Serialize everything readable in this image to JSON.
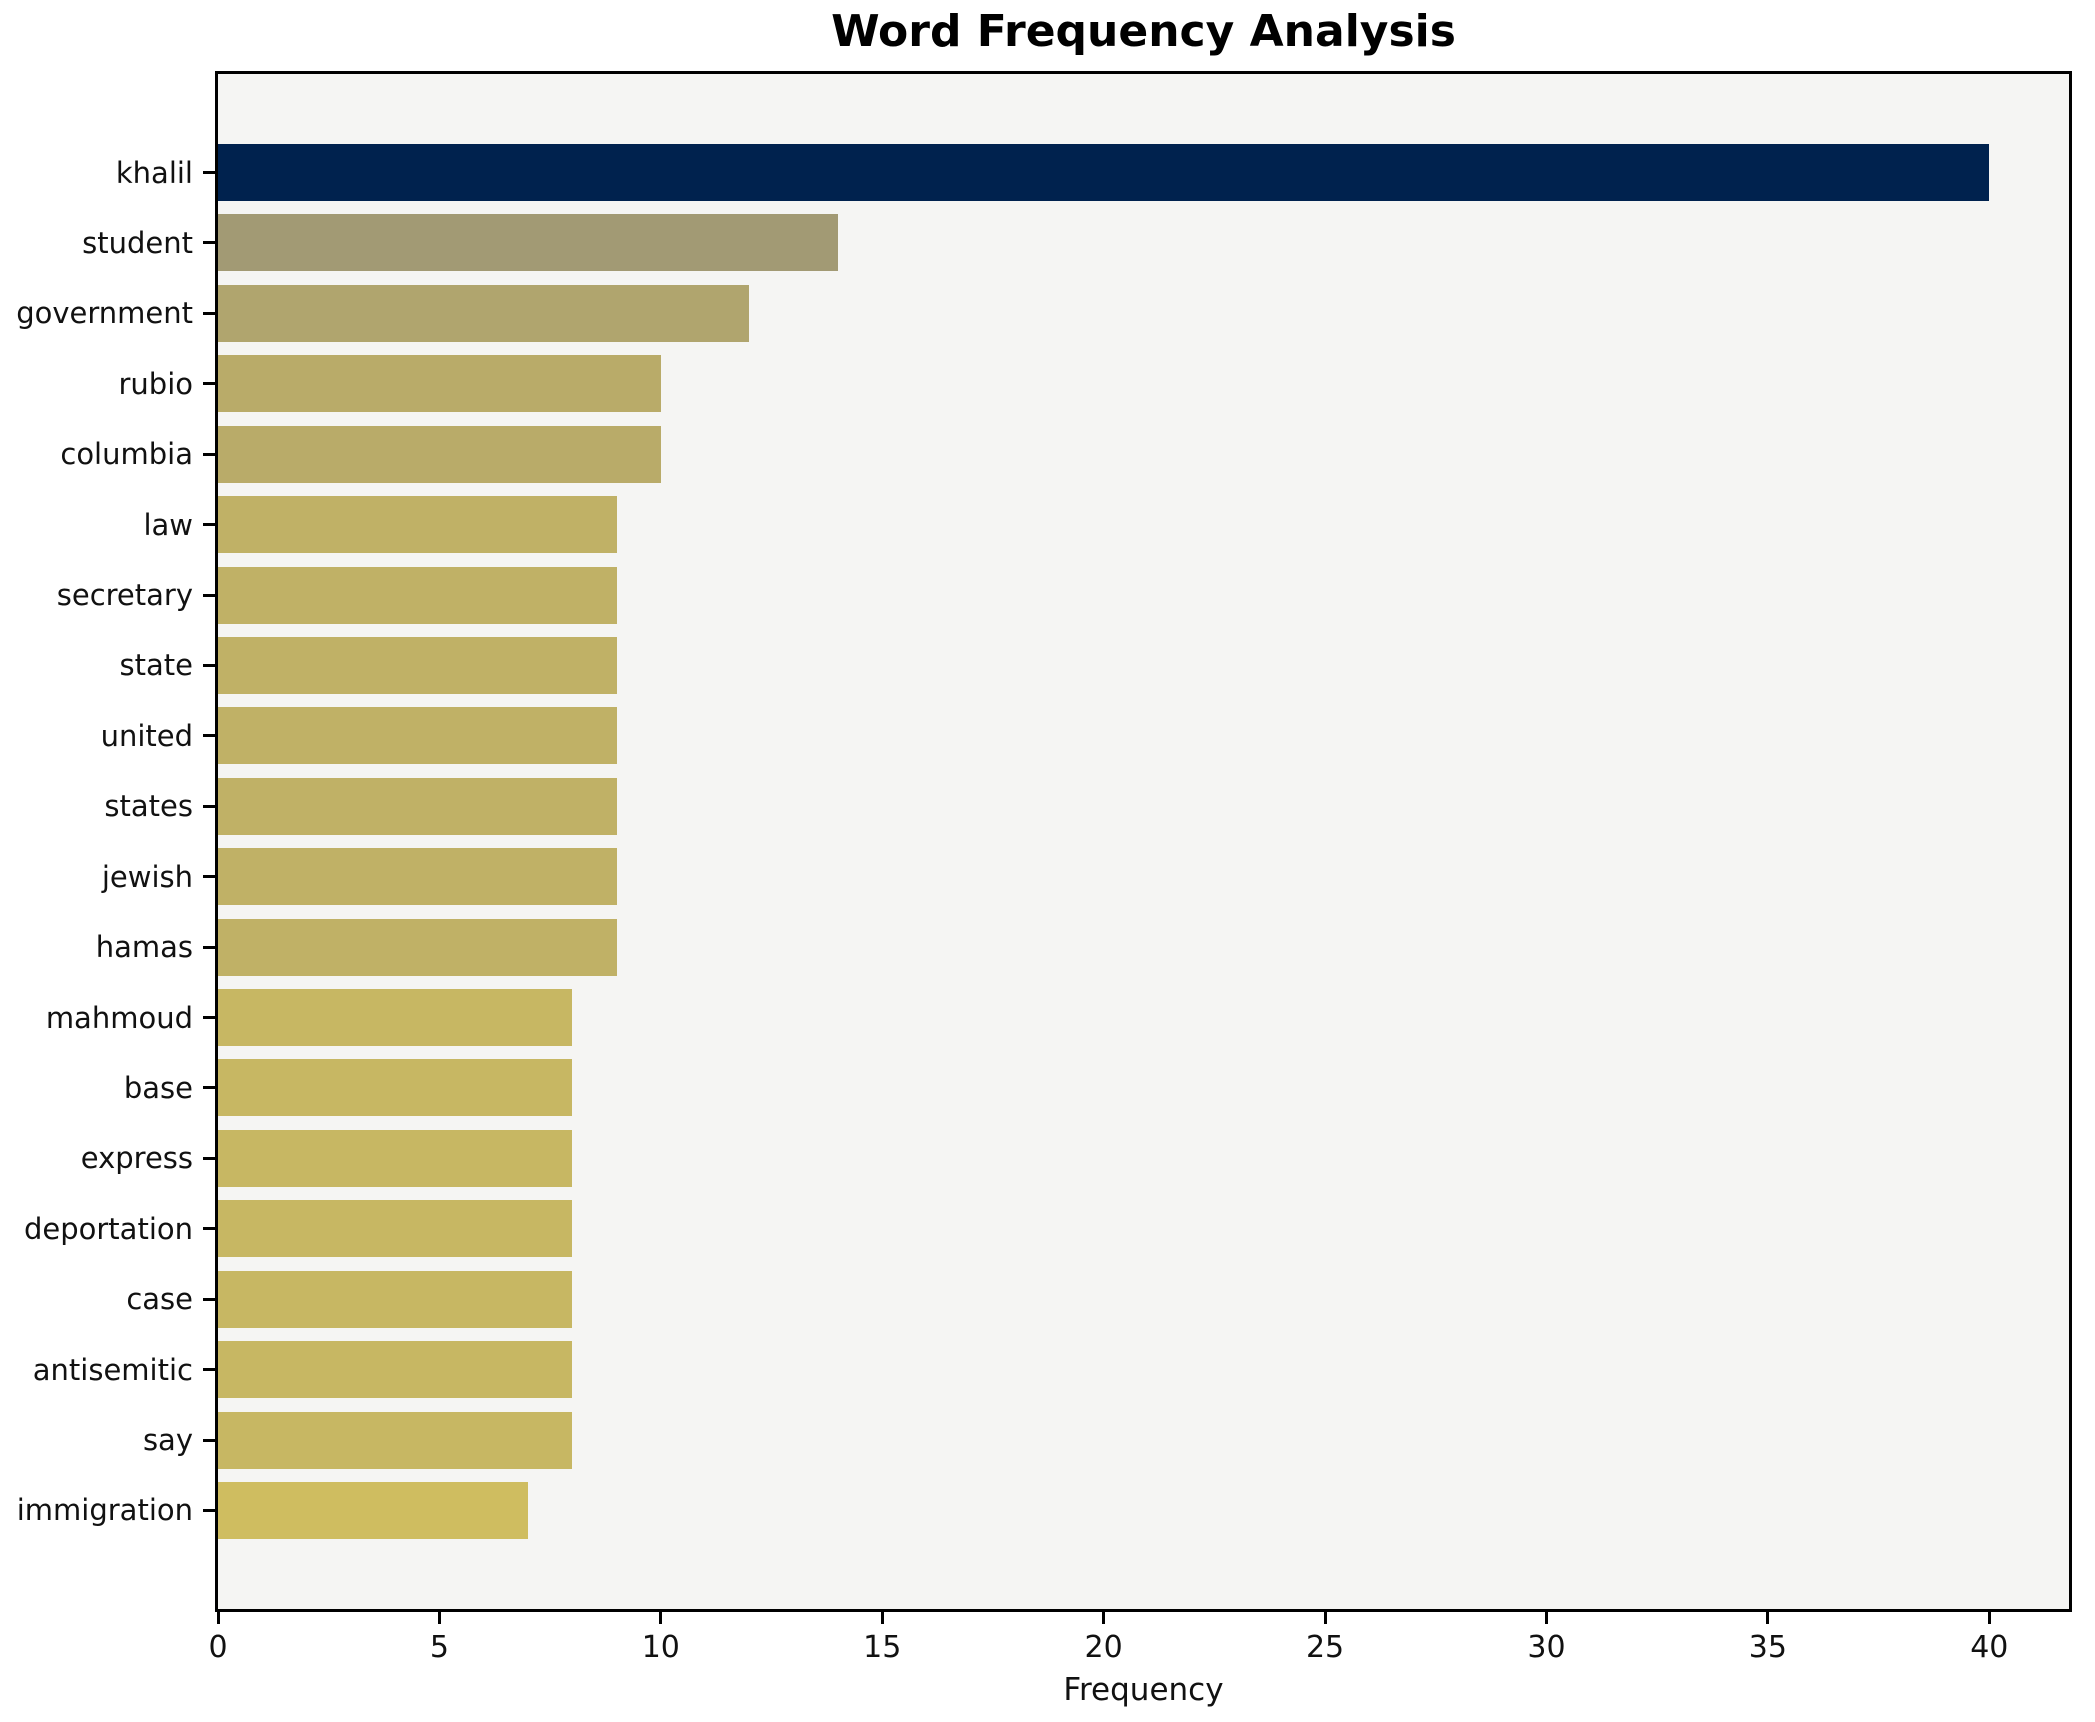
{
  "chart_data": {
    "type": "bar",
    "orientation": "horizontal",
    "title": "Word Frequency Analysis",
    "xlabel": "Frequency",
    "ylabel": "",
    "categories": [
      "khalil",
      "student",
      "government",
      "rubio",
      "columbia",
      "law",
      "secretary",
      "state",
      "united",
      "states",
      "jewish",
      "hamas",
      "mahmoud",
      "base",
      "express",
      "deportation",
      "case",
      "antisemitic",
      "say",
      "immigration"
    ],
    "values": [
      40,
      14,
      12,
      10,
      10,
      9,
      9,
      9,
      9,
      9,
      9,
      9,
      8,
      8,
      8,
      8,
      8,
      8,
      8,
      7
    ],
    "bar_colors": [
      "#00224e",
      "#a29a74",
      "#b0a56e",
      "#b9ab69",
      "#b9ab69",
      "#c0b166",
      "#c0b166",
      "#c0b166",
      "#c0b166",
      "#c0b166",
      "#c0b166",
      "#c0b166",
      "#c7b763",
      "#c7b763",
      "#c7b763",
      "#c7b763",
      "#c7b763",
      "#c7b763",
      "#c7b763",
      "#cfbd60"
    ],
    "xlim": [
      0,
      41.8
    ],
    "xticks": [
      0,
      5,
      10,
      15,
      20,
      25,
      30,
      35,
      40
    ],
    "grid": false,
    "legend": "none",
    "plot_background": "#f5f5f3",
    "figure_background": "#ffffff",
    "spine_color": "#000000",
    "text_color": "#111111"
  }
}
